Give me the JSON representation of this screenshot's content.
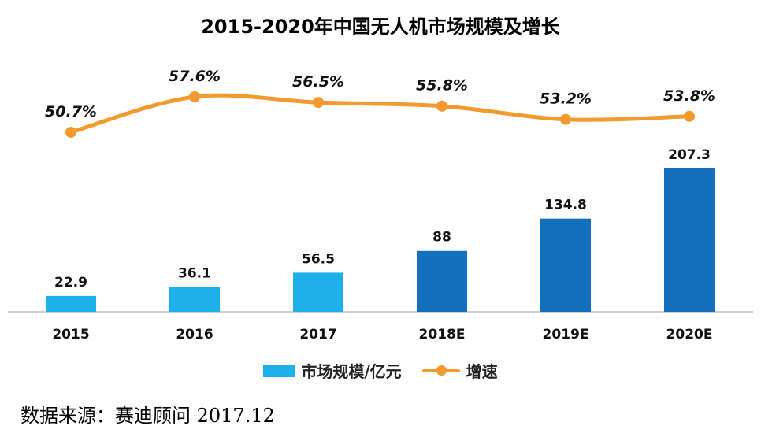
{
  "chart_data": {
    "type": "bar",
    "title": "2015-2020年中国无人机市场规模及增长",
    "categories": [
      "2015",
      "2016",
      "2017",
      "2018E",
      "2019E",
      "2020E"
    ],
    "series": [
      {
        "name": "市场规模/亿元",
        "type": "bar",
        "values": [
          22.9,
          36.1,
          56.5,
          88,
          134.8,
          207.3
        ],
        "labels": [
          "22.9",
          "36.1",
          "56.5",
          "88",
          "134.8",
          "207.3"
        ],
        "colors": [
          "#1fb0ea",
          "#1fb0ea",
          "#1fb0ea",
          "#1470bd",
          "#1470bd",
          "#1470bd"
        ]
      },
      {
        "name": "增速",
        "type": "line",
        "values": [
          50.7,
          57.6,
          56.5,
          55.8,
          53.2,
          53.8
        ],
        "labels": [
          "50.7%",
          "57.6%",
          "56.5%",
          "55.8%",
          "53.2%",
          "53.8%"
        ],
        "color": "#f39a2e"
      }
    ],
    "grid": false,
    "legend": "bottom"
  },
  "source_note": "数据来源：赛迪顾问 2017.12"
}
